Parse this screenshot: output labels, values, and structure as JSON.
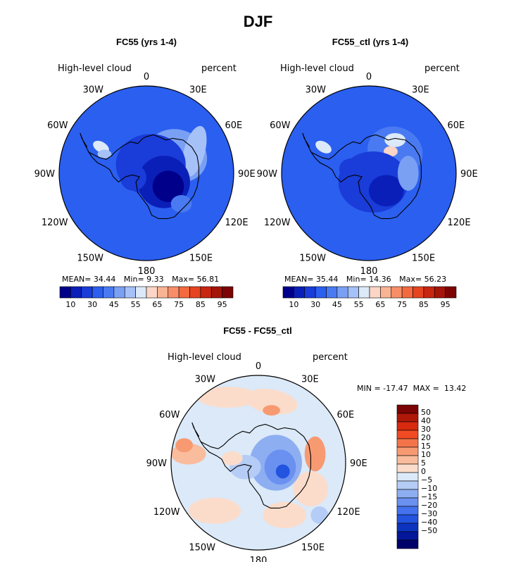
{
  "title": "DJF",
  "colors": {
    "mean_field": "#2b5ff0",
    "ocean_base_diff": "#dbe9f8",
    "coast": "#000000"
  },
  "panels": [
    {
      "id": "fc55",
      "title": "FC55 (yrs 1-4)",
      "field_label": "High-level cloud",
      "units": "percent",
      "stats": {
        "mean_label": "MEAN=",
        "mean": "34.44",
        "min_label": "Min=",
        "min": "9.33",
        "max_label": "Max=",
        "max": "56.81"
      }
    },
    {
      "id": "fc55_ctl",
      "title": "FC55_ctl (yrs 1-4)",
      "field_label": "High-level cloud",
      "units": "percent",
      "stats": {
        "mean_label": "MEAN=",
        "mean": "35.44",
        "min_label": "Min=",
        "min": "14.36",
        "max_label": "Max=",
        "max": "56.23"
      }
    },
    {
      "id": "diff",
      "title": "FC55 - FC55_ctl",
      "field_label": "High-level cloud",
      "units": "percent",
      "stats_line": "MIN = -17.47  MAX =  13.42"
    }
  ],
  "lon_labels": [
    "0",
    "30E",
    "60E",
    "90E",
    "120E",
    "150E",
    "180",
    "150W",
    "120W",
    "90W",
    "60W",
    "30W"
  ],
  "colorbar_abs": {
    "colors": [
      "#00008a",
      "#0a1fb8",
      "#1a3cd8",
      "#2b5ff0",
      "#4a7af2",
      "#7aa0f4",
      "#a6c1f8",
      "#dbe9f8",
      "#fbd6c6",
      "#f9b494",
      "#f78e68",
      "#f46a40",
      "#e64420",
      "#c82610",
      "#a51408",
      "#7c0404"
    ],
    "labels": [
      "10",
      "30",
      "45",
      "55",
      "65",
      "75",
      "85",
      "95"
    ]
  },
  "colorbar_diff": {
    "colors": [
      "#7c0404",
      "#b0180a",
      "#d92a10",
      "#f04a24",
      "#f4744a",
      "#f79a72",
      "#f9bc9c",
      "#fbdccb",
      "#dbe9f8",
      "#b4ccf6",
      "#8eaef2",
      "#6a90f0",
      "#4472ee",
      "#2354e0",
      "#0c34c0",
      "#04169a",
      "#00006a"
    ],
    "labels": [
      "50",
      "40",
      "30",
      "20",
      "15",
      "10",
      "5",
      "0",
      "−5",
      "−10",
      "−15",
      "−20",
      "−30",
      "−40",
      "−50"
    ]
  }
}
